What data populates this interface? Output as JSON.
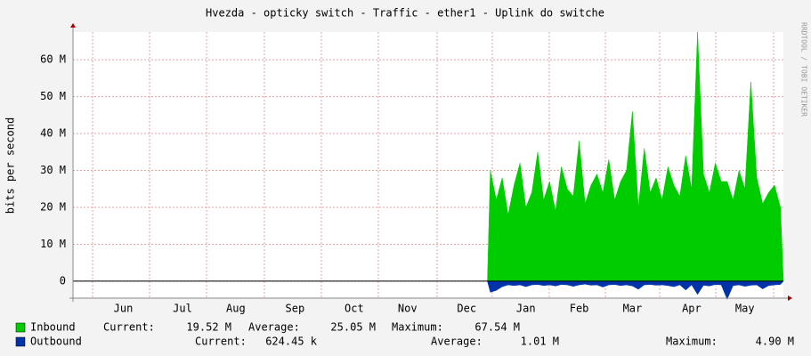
{
  "chart_data": {
    "type": "area",
    "title": "Hvezda - opticky switch - Traffic - ether1 - Uplink do switche",
    "y_label": "bits per second",
    "watermark": "RRDTOOL / TOBI OETIKER",
    "categories": [
      null,
      null,
      null,
      null,
      null,
      null,
      null,
      null,
      "Jun",
      null,
      null,
      null,
      null,
      null,
      null,
      null,
      null,
      null,
      "Jul",
      null,
      null,
      null,
      null,
      null,
      null,
      null,
      null,
      "Aug",
      null,
      null,
      null,
      null,
      null,
      null,
      null,
      null,
      null,
      "Sep",
      null,
      null,
      null,
      null,
      null,
      null,
      null,
      null,
      null,
      "Oct",
      null,
      null,
      null,
      null,
      null,
      null,
      null,
      null,
      "Nov",
      null,
      null,
      null,
      null,
      null,
      null,
      null,
      null,
      null,
      "Dec",
      null,
      null,
      null,
      null,
      null,
      null,
      null,
      null,
      null,
      "Jan",
      null,
      null,
      null,
      null,
      null,
      null,
      null,
      null,
      "Feb",
      null,
      null,
      null,
      null,
      null,
      null,
      null,
      null,
      "Mar",
      null,
      null,
      null,
      null,
      null,
      null,
      null,
      null,
      null,
      "Apr",
      null,
      null,
      null,
      null,
      null,
      null,
      null,
      null,
      "May",
      null,
      null,
      null,
      null,
      null,
      null
    ],
    "series": [
      {
        "name": "Inbound",
        "color": "#00cc00",
        "values": [
          null,
          null,
          null,
          null,
          null,
          null,
          null,
          null,
          null,
          null,
          null,
          null,
          null,
          null,
          null,
          null,
          null,
          null,
          null,
          null,
          null,
          null,
          null,
          null,
          null,
          null,
          null,
          null,
          null,
          null,
          null,
          null,
          null,
          null,
          null,
          null,
          null,
          null,
          null,
          null,
          null,
          null,
          null,
          null,
          null,
          null,
          null,
          null,
          null,
          null,
          null,
          null,
          null,
          null,
          null,
          null,
          null,
          null,
          null,
          null,
          null,
          null,
          null,
          null,
          null,
          null,
          null,
          null,
          null,
          null,
          30,
          22,
          28,
          18,
          26,
          32,
          20,
          24,
          35,
          22,
          27,
          19,
          31,
          25,
          23,
          38,
          21,
          26,
          29,
          24,
          33,
          22,
          27,
          30,
          46,
          20,
          36,
          24,
          28,
          22,
          31,
          26,
          23,
          34,
          25,
          67.54,
          29,
          24,
          32,
          27,
          27,
          22,
          30,
          25,
          54,
          28,
          21,
          24,
          26,
          20
        ],
        "stats": [
          {
            "value": 19.52,
            "label": "19.52 M"
          },
          {
            "value": 25.05,
            "label": "25.05 M"
          },
          {
            "value": 67.54,
            "label": "67.54 M"
          }
        ]
      },
      {
        "name": "Outbound",
        "color": "#0033aa",
        "values": [
          null,
          null,
          null,
          null,
          null,
          null,
          null,
          null,
          null,
          null,
          null,
          null,
          null,
          null,
          null,
          null,
          null,
          null,
          null,
          null,
          null,
          null,
          null,
          null,
          null,
          null,
          null,
          null,
          null,
          null,
          null,
          null,
          null,
          null,
          null,
          null,
          null,
          null,
          null,
          null,
          null,
          null,
          null,
          null,
          null,
          null,
          null,
          null,
          null,
          null,
          null,
          null,
          null,
          null,
          null,
          null,
          null,
          null,
          null,
          null,
          null,
          null,
          null,
          null,
          null,
          null,
          null,
          null,
          null,
          null,
          -3,
          -2.5,
          -1.5,
          -1,
          -1.2,
          -1,
          -1.5,
          -1,
          -0.9,
          -1.2,
          -1,
          -1.3,
          -0.9,
          -1,
          -1.4,
          -1,
          -0.8,
          -1.1,
          -1,
          -1.6,
          -1,
          -0.9,
          -1.2,
          -1,
          -1.3,
          -2.2,
          -1,
          -0.9,
          -1.1,
          -1,
          -1.2,
          -1.5,
          -1,
          -2.4,
          -1,
          -3.6,
          -1.1,
          -1.3,
          -0.9,
          -1,
          -4.9,
          -1.2,
          -1,
          -1.4,
          -1.1,
          -1,
          -2.1,
          -1.2,
          -1,
          -0.9
        ],
        "stats": [
          {
            "value": 0.62445,
            "label": "624.45 k"
          },
          {
            "value": 1.01,
            "label": "1.01 M"
          },
          {
            "value": 4.9,
            "label": "4.90 M"
          }
        ]
      }
    ],
    "stat_labels": [
      "Current:",
      "Average:",
      "Maximum:"
    ],
    "ylim": [
      -4.6,
      67.5
    ],
    "yticks": [
      {
        "value": 0,
        "label": "0"
      },
      {
        "value": 10,
        "label": "10 M"
      },
      {
        "value": 20,
        "label": "20 M"
      },
      {
        "value": 30,
        "label": "30 M"
      },
      {
        "value": 40,
        "label": "40 M"
      },
      {
        "value": 50,
        "label": "50 M"
      },
      {
        "value": 60,
        "label": "60 M"
      }
    ],
    "grid": true
  }
}
